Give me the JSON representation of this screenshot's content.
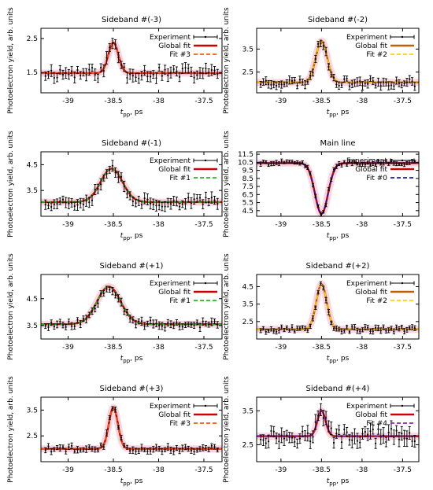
{
  "figure": {
    "shared_xlabel": "t",
    "shared_xlabel_sub": "pp",
    "shared_xlabel_unit": ", ps",
    "shared_ylabel": "Photoelectron yield, arb. units",
    "legend_experiment": "Experiment",
    "legend_global": "Global fit",
    "colors": {
      "experiment": "#000000",
      "global_fit": "#cc0000",
      "band": "#f4b6c8",
      "fit_red": "#ff5a00",
      "fit_gold": "#ffd000",
      "fit_green": "#22bb22",
      "fit_blue": "#1a1ab8",
      "fit_purple": "#9020b0"
    }
  },
  "chart_data": [
    {
      "type": "scatter",
      "title": "Sideband #(-3)",
      "xlabel": "tpp, ps",
      "ylabel": "Photoelectron yield, arb. units",
      "xlim": [
        -39.3,
        -37.3
      ],
      "ylim": [
        0.9,
        2.8
      ],
      "xticks": [
        "-39",
        "-38.5",
        "-38",
        "-37.5"
      ],
      "xtick_values": [
        -39,
        -38.5,
        -38,
        -37.5
      ],
      "yticks": [
        "1.5",
        "2.5"
      ],
      "ytick_values": [
        1.5,
        2.5
      ],
      "peak": {
        "baseline": 1.48,
        "amplitude": 0.9,
        "center": -38.5,
        "sigma": 0.055,
        "dip": false
      },
      "fit_name": "Fit #3",
      "fit_color": "#ff5a00",
      "global_color": "#cc0000",
      "noise": 0.17,
      "seed": 11
    },
    {
      "type": "scatter",
      "title": "Sideband #(-2)",
      "xlabel": "tpp, ps",
      "ylabel": "Photoelectron yield, arb. units",
      "xlim": [
        -39.3,
        -37.3
      ],
      "ylim": [
        1.6,
        4.4
      ],
      "xticks": [
        "-39",
        "-38.5",
        "-38",
        "-37.5"
      ],
      "xtick_values": [
        -39,
        -38.5,
        -38,
        -37.5
      ],
      "yticks": [
        "2.5",
        "3.5"
      ],
      "ytick_values": [
        2.5,
        3.5
      ],
      "peak": {
        "baseline": 2.05,
        "amplitude": 1.8,
        "center": -38.5,
        "sigma": 0.07,
        "dip": false
      },
      "fit_name": "Fit #2",
      "fit_color": "#ffd000",
      "global_color": "#c06000",
      "noise": 0.17,
      "seed": 23
    },
    {
      "type": "scatter",
      "title": "Sideband #(-1)",
      "xlabel": "tpp, ps",
      "ylabel": "Photoelectron yield, arb. units",
      "xlim": [
        -39.3,
        -37.3
      ],
      "ylim": [
        2.5,
        5.0
      ],
      "xticks": [
        "-39",
        "-38.5",
        "-38",
        "-37.5"
      ],
      "xtick_values": [
        -39,
        -38.5,
        -38,
        -37.5
      ],
      "yticks": [
        "3.5",
        "4.5"
      ],
      "ytick_values": [
        3.5,
        4.5
      ],
      "peak": {
        "baseline": 3.05,
        "amplitude": 1.3,
        "center": -38.52,
        "sigma": 0.12,
        "dip": false
      },
      "fit_name": "Fit #1",
      "fit_color": "#22bb22",
      "global_color": "#cc0000",
      "noise": 0.2,
      "seed": 37
    },
    {
      "type": "scatter",
      "title": "Main line",
      "xlabel": "tpp, ps",
      "ylabel": "Photoelectron yield, arb. units",
      "xlim": [
        -39.3,
        -37.3
      ],
      "ylim": [
        3.8,
        11.8
      ],
      "xticks": [
        "-39",
        "-38.5",
        "-38",
        "-37.5"
      ],
      "xtick_values": [
        -39,
        -38.5,
        -38,
        -37.5
      ],
      "yticks": [
        "4.5",
        "5.5",
        "6.5",
        "7.5",
        "8.5",
        "9.5",
        "10.5",
        "11.5"
      ],
      "ytick_values": [
        4.5,
        5.5,
        6.5,
        7.5,
        8.5,
        9.5,
        10.5,
        11.5
      ],
      "peak": {
        "baseline": 10.4,
        "amplitude": 6.3,
        "center": -38.5,
        "sigma": 0.08,
        "dip": true
      },
      "fit_name": "Fit #0",
      "fit_color": "#1a1ab8",
      "global_color": "#cc0000",
      "noise": 0.25,
      "seed": 41
    },
    {
      "type": "scatter",
      "title": "Sideband #(+1)",
      "xlabel": "tpp, ps",
      "ylabel": "Photoelectron yield, arb. units",
      "xlim": [
        -39.3,
        -37.3
      ],
      "ylim": [
        3.0,
        5.4
      ],
      "xticks": [
        "-39",
        "-38.5",
        "-38",
        "-37.5"
      ],
      "xtick_values": [
        -39,
        -38.5,
        -38,
        -37.5
      ],
      "yticks": [
        "3.5",
        "4.5"
      ],
      "ytick_values": [
        3.5,
        4.5
      ],
      "peak": {
        "baseline": 3.55,
        "amplitude": 1.4,
        "center": -38.55,
        "sigma": 0.13,
        "dip": false
      },
      "fit_name": "Fit #1",
      "fit_color": "#22bb22",
      "global_color": "#cc0000",
      "noise": 0.14,
      "seed": 53
    },
    {
      "type": "scatter",
      "title": "Sideband #(+2)",
      "xlabel": "tpp, ps",
      "ylabel": "Photoelectron yield, arb. units",
      "xlim": [
        -39.3,
        -37.3
      ],
      "ylim": [
        1.5,
        5.2
      ],
      "xticks": [
        "-39",
        "-38.5",
        "-38",
        "-37.5"
      ],
      "xtick_values": [
        -39,
        -38.5,
        -38,
        -37.5
      ],
      "yticks": [
        "2.5",
        "3.5",
        "4.5"
      ],
      "ytick_values": [
        2.5,
        3.5,
        4.5
      ],
      "peak": {
        "baseline": 2.05,
        "amplitude": 2.6,
        "center": -38.5,
        "sigma": 0.065,
        "dip": false
      },
      "fit_name": "Fit #2",
      "fit_color": "#ffd000",
      "global_color": "#c06000",
      "noise": 0.15,
      "seed": 67
    },
    {
      "type": "scatter",
      "title": "Sideband #(+3)",
      "xlabel": "tpp, ps",
      "ylabel": "Photoelectron yield, arb. units",
      "xlim": [
        -39.3,
        -37.3
      ],
      "ylim": [
        1.5,
        4.0
      ],
      "xticks": [
        "-39",
        "-38.5",
        "-38",
        "-37.5"
      ],
      "xtick_values": [
        -39,
        -38.5,
        -38,
        -37.5
      ],
      "yticks": [
        "2.5",
        "3.5"
      ],
      "ytick_values": [
        2.5,
        3.5
      ],
      "peak": {
        "baseline": 2.0,
        "amplitude": 1.6,
        "center": -38.5,
        "sigma": 0.05,
        "dip": false
      },
      "fit_name": "Fit #3",
      "fit_color": "#ff5a00",
      "global_color": "#cc0000",
      "noise": 0.12,
      "seed": 79
    },
    {
      "type": "scatter",
      "title": "Sideband #(+4)",
      "xlabel": "tpp, ps",
      "ylabel": "Photoelectron yield, arb. units",
      "xlim": [
        -39.3,
        -37.3
      ],
      "ylim": [
        2.0,
        3.9
      ],
      "xticks": [
        "-39",
        "-38.5",
        "-38",
        "-37.5"
      ],
      "xtick_values": [
        -39,
        -38.5,
        -38,
        -37.5
      ],
      "yticks": [
        "2.5",
        "3.5"
      ],
      "ytick_values": [
        2.5,
        3.5
      ],
      "peak": {
        "baseline": 2.75,
        "amplitude": 0.75,
        "center": -38.5,
        "sigma": 0.05,
        "dip": false
      },
      "fit_name": "Fit #4",
      "fit_color": "#9020b0",
      "global_color": "#cc0000",
      "noise": 0.22,
      "seed": 97
    }
  ]
}
